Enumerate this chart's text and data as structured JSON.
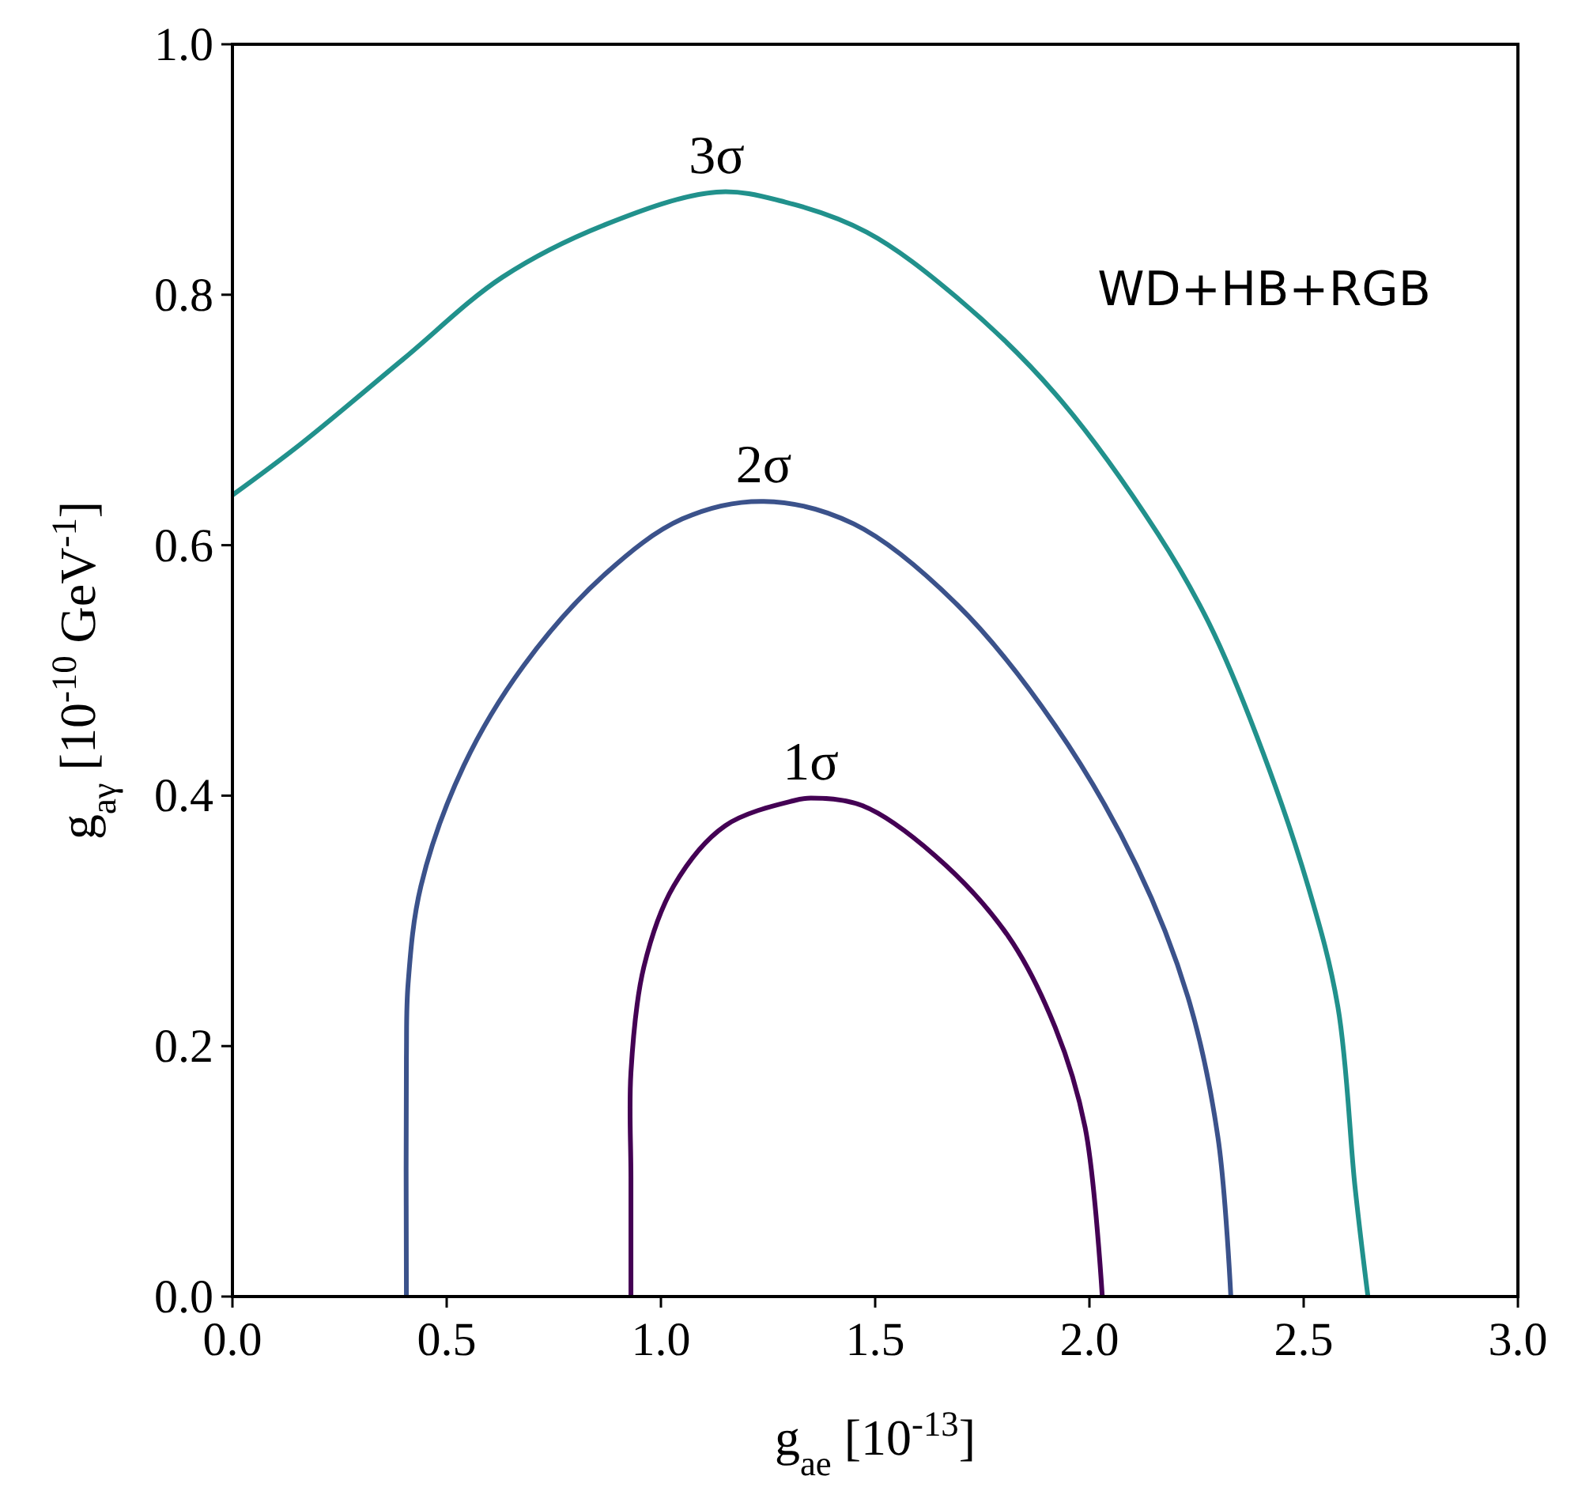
{
  "chart_data": {
    "type": "line",
    "xlabel": "g$_{ae}$ [10$^{-13}$]",
    "ylabel": "g$_{aγ}$ [10$^{-10}$ GeV$^{-1}$]",
    "xlim": [
      0,
      3
    ],
    "ylim": [
      0,
      1
    ],
    "xticks": [
      {
        "value": 0,
        "label": "0.0"
      },
      {
        "value": 0.5,
        "label": "0.5"
      },
      {
        "value": 1,
        "label": "1.0"
      },
      {
        "value": 1.5,
        "label": "1.5"
      },
      {
        "value": 2,
        "label": "2.0"
      },
      {
        "value": 2.5,
        "label": "2.5"
      },
      {
        "value": 3,
        "label": "3.0"
      }
    ],
    "yticks": [
      {
        "value": 0,
        "label": "0.0"
      },
      {
        "value": 0.2,
        "label": "0.2"
      },
      {
        "value": 0.4,
        "label": "0.4"
      },
      {
        "value": 0.6,
        "label": "0.6"
      },
      {
        "value": 0.8,
        "label": "0.8"
      },
      {
        "value": 1,
        "label": "1.0"
      }
    ],
    "grid": false,
    "marker": "none",
    "line_style": "solid",
    "annotations": [
      "WD+HB+RGB"
    ],
    "series": [
      {
        "name": "1σ",
        "color": "#440154",
        "x": [
          0.93,
          0.93,
          0.93,
          0.96,
          1.03,
          1.15,
          1.31,
          1.35,
          1.47,
          1.64,
          1.81,
          1.92,
          1.99,
          2.03
        ],
        "values": [
          0,
          0.095,
          0.179,
          0.263,
          0.328,
          0.376,
          0.396,
          0.398,
          0.392,
          0.352,
          0.288,
          0.215,
          0.135,
          0
        ]
      },
      {
        "name": "2σ",
        "color": "#3b528b",
        "x": [
          0.406,
          0.406,
          0.41,
          0.44,
          0.54,
          0.68,
          0.87,
          1.05,
          1.24,
          1.45,
          1.69,
          1.92,
          2.11,
          2.23,
          2.3,
          2.33
        ],
        "values": [
          0,
          0.19,
          0.25,
          0.328,
          0.424,
          0.504,
          0.577,
          0.621,
          0.635,
          0.617,
          0.553,
          0.456,
          0.344,
          0.239,
          0.127,
          0
        ]
      },
      {
        "name": "3σ",
        "color": "#21918c",
        "x": [
          0,
          0.16,
          0.4,
          0.63,
          0.87,
          1.13,
          1.29,
          1.48,
          1.69,
          1.92,
          2.16,
          2.28,
          2.39,
          2.51,
          2.58,
          2.62,
          2.65
        ],
        "values": [
          0.64,
          0.681,
          0.749,
          0.814,
          0.856,
          0.882,
          0.874,
          0.85,
          0.798,
          0.721,
          0.609,
          0.537,
          0.448,
          0.328,
          0.231,
          0.087,
          0
        ]
      }
    ]
  }
}
